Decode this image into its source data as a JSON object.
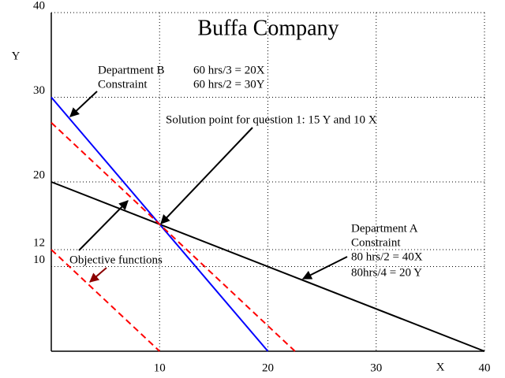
{
  "chart_data": {
    "type": "line",
    "title": "Buffa Company",
    "x_label": "X",
    "y_label": "Y",
    "xlim": [
      0,
      40
    ],
    "ylim": [
      0,
      40
    ],
    "xticks": [
      10,
      20,
      30,
      40
    ],
    "yticks": [
      10,
      12,
      20,
      30,
      40
    ],
    "grid": true,
    "series": [
      {
        "color": "#000000",
        "dash": false,
        "x": [
          0,
          40
        ],
        "values": [
          20,
          0
        ]
      },
      {
        "color": "#0000ff",
        "dash": false,
        "x": [
          0,
          20
        ],
        "values": [
          30,
          0
        ]
      },
      {
        "color": "#ff0000",
        "dash": true,
        "x": [
          0,
          10
        ],
        "values": [
          12,
          0
        ]
      },
      {
        "color": "#ff0000",
        "dash": true,
        "x": [
          0,
          22.5
        ],
        "values": [
          27,
          0
        ]
      }
    ],
    "annotations": [
      "Department B",
      "Constraint",
      "60 hrs/3 = 20X",
      "60 hrs/2 = 30Y",
      "Solution point for question 1: 15 Y and 10 X",
      "Department A",
      "Constraint",
      "80 hrs/2 = 40X",
      "80hrs/4 = 20 Y",
      "Objective functions"
    ]
  }
}
